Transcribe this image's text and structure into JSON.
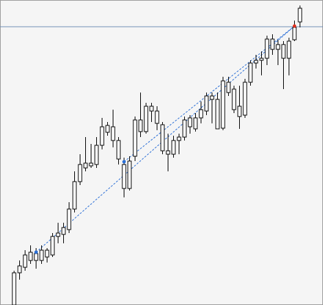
{
  "chart_data": {
    "type": "candlestick",
    "ylim": [
      0,
      445
    ],
    "background": "#f5f5f5",
    "body_color": "#ffffff",
    "wick_color": "#000000",
    "open": [
      0,
      47,
      55,
      65,
      75,
      65,
      80,
      73,
      100,
      103,
      110,
      140,
      180,
      200,
      203,
      205,
      233,
      252,
      260,
      240,
      205,
      170,
      217,
      253,
      253,
      290,
      283,
      263,
      225,
      220,
      240,
      245,
      260,
      257,
      273,
      283,
      305,
      300,
      258,
      325,
      315,
      290,
      277,
      325,
      353,
      357,
      360,
      388,
      373,
      380,
      360,
      387,
      413
    ],
    "close": [
      47,
      57,
      73,
      77,
      65,
      80,
      70,
      100,
      105,
      113,
      140,
      180,
      205,
      207,
      207,
      233,
      260,
      262,
      240,
      213,
      170,
      210,
      270,
      270,
      290,
      283,
      265,
      225,
      220,
      240,
      245,
      270,
      273,
      273,
      285,
      305,
      300,
      257,
      327,
      310,
      285,
      275,
      325,
      353,
      357,
      360,
      388,
      373,
      380,
      360,
      385,
      405,
      433
    ],
    "high": [
      50,
      65,
      80,
      87,
      83,
      87,
      83,
      105,
      120,
      120,
      150,
      195,
      220,
      245,
      235,
      245,
      273,
      267,
      285,
      245,
      215,
      217,
      275,
      310,
      295,
      295,
      290,
      267,
      250,
      247,
      250,
      275,
      277,
      280,
      297,
      310,
      310,
      310,
      333,
      333,
      320,
      320,
      330,
      357,
      365,
      370,
      393,
      395,
      387,
      385,
      390,
      415,
      437
    ],
    "low": [
      0,
      37,
      50,
      60,
      53,
      60,
      62,
      70,
      90,
      90,
      105,
      135,
      175,
      195,
      200,
      200,
      227,
      247,
      230,
      205,
      157,
      167,
      210,
      245,
      250,
      267,
      255,
      220,
      195,
      215,
      220,
      240,
      250,
      253,
      265,
      277,
      265,
      257,
      255,
      305,
      280,
      257,
      273,
      320,
      345,
      335,
      350,
      365,
      350,
      315,
      335,
      385,
      405
    ],
    "hline": {
      "value": 406,
      "color": "#6f8fb5"
    },
    "trendlines": [
      {
        "from": [
          4,
          77
        ],
        "to": [
          51,
          407
        ],
        "color": "#2b6fd6"
      },
      {
        "from": [
          20,
          209
        ],
        "to": [
          51,
          407
        ],
        "color": "#2b6fd6"
      }
    ],
    "markers": [
      {
        "index": 4,
        "value": 77,
        "color": "#2b6fd6"
      },
      {
        "index": 20,
        "value": 209,
        "color": "#2b6fd6"
      },
      {
        "index": 51,
        "value": 407,
        "color": "#e0301e"
      }
    ]
  }
}
